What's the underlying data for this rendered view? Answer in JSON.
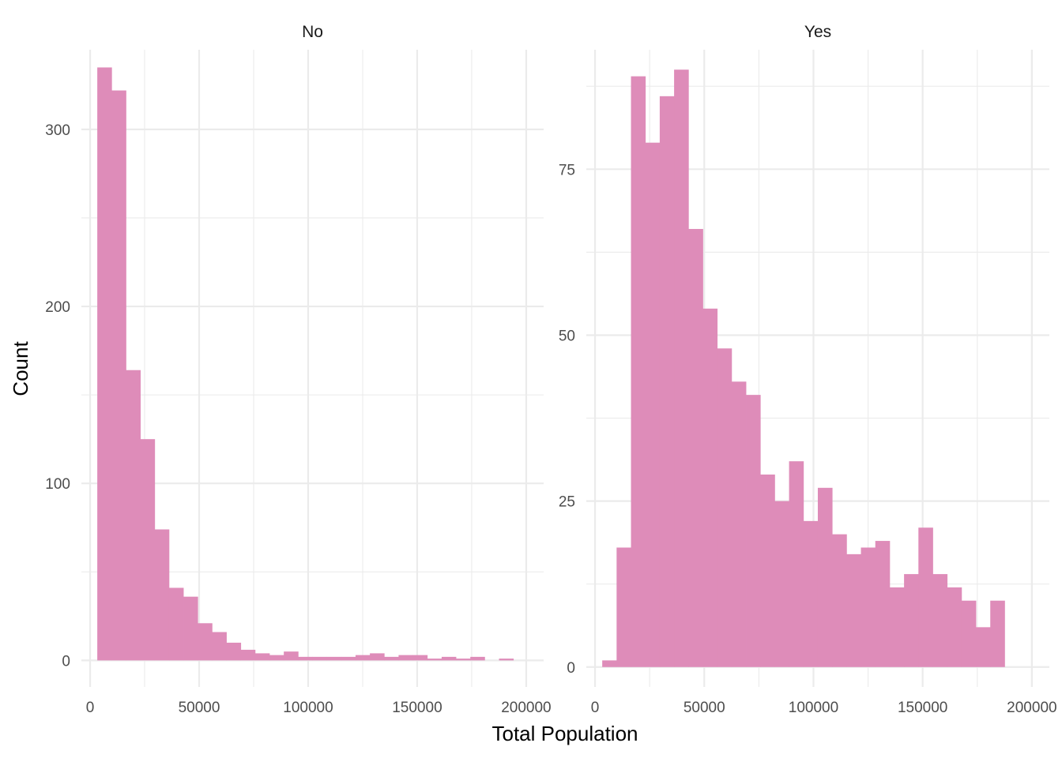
{
  "chart_data": {
    "type": "bar",
    "xlabel": "Total Population",
    "ylabel": "Count",
    "bar_color": "#DE8CB9",
    "grid_color": "#EBEBEB",
    "grid": true,
    "bin_width": 6580,
    "x_ticks": [
      0,
      50000,
      100000,
      150000,
      200000
    ],
    "x_tick_labels": [
      "0",
      "50000",
      "100000",
      "150000",
      "200000"
    ],
    "xlim": [
      -4000,
      208000
    ],
    "panels": [
      {
        "name": "No",
        "ylim": [
          -15,
          345
        ],
        "y_ticks": [
          0,
          100,
          200,
          300
        ],
        "y_tick_labels": [
          "0",
          "100",
          "200",
          "300"
        ],
        "bin_starts": [
          3290,
          9870,
          16450,
          23030,
          29610,
          36190,
          42770,
          49350,
          55930,
          62510,
          69090,
          75670,
          82250,
          88830,
          95410,
          101990,
          108570,
          115150,
          121730,
          128310,
          134890,
          141470,
          148050,
          154630,
          161210,
          167790,
          174370,
          180950,
          187530,
          194110
        ],
        "values": [
          335,
          322,
          164,
          125,
          74,
          41,
          36,
          21,
          16,
          10,
          6,
          4,
          3,
          5,
          2,
          2,
          2,
          2,
          3,
          4,
          2,
          3,
          3,
          1,
          2,
          1,
          2,
          0,
          1,
          0
        ]
      },
      {
        "name": "Yes",
        "ylim": [
          -3,
          93
        ],
        "y_ticks": [
          0,
          25,
          50,
          75
        ],
        "y_tick_labels": [
          "0",
          "25",
          "50",
          "75"
        ],
        "bin_starts": [
          3290,
          9870,
          16450,
          23030,
          29610,
          36190,
          42770,
          49350,
          55930,
          62510,
          69090,
          75670,
          82250,
          88830,
          95410,
          101990,
          108570,
          115150,
          121730,
          128310,
          134890,
          141470,
          148050,
          154630,
          161210,
          167790,
          174370,
          180950,
          187530
        ],
        "values": [
          1,
          18,
          89,
          79,
          86,
          90,
          66,
          54,
          48,
          43,
          41,
          29,
          25,
          31,
          22,
          27,
          20,
          17,
          18,
          19,
          12,
          14,
          21,
          14,
          12,
          10,
          6,
          10,
          0
        ]
      }
    ]
  }
}
